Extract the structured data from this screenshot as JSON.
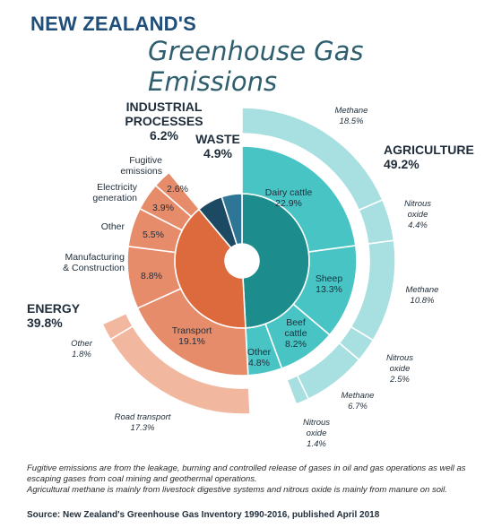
{
  "header": {
    "title_line1": "NEW ZEALAND'S",
    "title_line2": "Greenhouse Gas Emissions"
  },
  "chart_data": {
    "type": "sunburst",
    "title": "NEW ZEALAND'S Greenhouse Gas Emissions",
    "unit": "%",
    "sectors": [
      {
        "name": "AGRICULTURE",
        "value": 49.2,
        "color": "#3fbcbc",
        "sources": [
          {
            "name": "Dairy cattle",
            "value": 22.9
          },
          {
            "name": "Sheep",
            "value": 13.3
          },
          {
            "name": "Beef cattle",
            "value": 8.2
          },
          {
            "name": "Other",
            "value": 4.8
          }
        ],
        "gases": [
          {
            "name": "Methane",
            "value": 18.5
          },
          {
            "name": "Nitrous oxide",
            "value": 4.4
          },
          {
            "name": "Methane",
            "value": 10.8
          },
          {
            "name": "Nitrous oxide",
            "value": 2.5
          },
          {
            "name": "Methane",
            "value": 6.7
          },
          {
            "name": "Nitrous oxide",
            "value": 1.4
          }
        ]
      },
      {
        "name": "ENERGY",
        "value": 39.8,
        "color": "#e07a55",
        "sources": [
          {
            "name": "Transport",
            "value": 19.1
          },
          {
            "name": "Manufacturing & Construction",
            "value": 8.8
          },
          {
            "name": "Other",
            "value": 5.5
          },
          {
            "name": "Electricity generation",
            "value": 3.9
          },
          {
            "name": "Fugitive emissions",
            "value": 2.6
          }
        ],
        "transport_breakdown": [
          {
            "name": "Road transport",
            "value": 17.3
          },
          {
            "name": "Other",
            "value": 1.8
          }
        ]
      },
      {
        "name": "INDUSTRIAL PROCESSES",
        "value": 6.2,
        "color": "#1d5a73"
      },
      {
        "name": "WASTE",
        "value": 4.9,
        "color": "#2f7e96"
      }
    ],
    "labels": {
      "agriculture": [
        "AGRICULTURE",
        "49.2%"
      ],
      "energy": [
        "ENERGY",
        "39.8%"
      ],
      "industrial": [
        "INDUSTRIAL",
        "PROCESSES",
        "6.2%"
      ],
      "waste": [
        "WASTE",
        "4.9%"
      ],
      "dairy": [
        "Dairy cattle",
        "22.9%"
      ],
      "sheep": [
        "Sheep",
        "13.3%"
      ],
      "beef": [
        "Beef",
        "cattle",
        "8.2%"
      ],
      "ag_other": [
        "Other",
        "4.8%"
      ],
      "transport": [
        "Transport",
        "19.1%"
      ],
      "manufacturing_name": [
        "Manufacturing",
        "& Construction"
      ],
      "manufacturing_value": "8.8%",
      "en_other_name": "Other",
      "en_other_value": "5.5%",
      "electricity_name": [
        "Electricity",
        "generation"
      ],
      "electricity_value": "3.9%",
      "fugitive_name": [
        "Fugitive",
        "emissions"
      ],
      "fugitive_value": "2.6%",
      "methane1": [
        "Methane",
        "18.5%"
      ],
      "nitrous1": [
        "Nitrous",
        "oxide",
        "4.4%"
      ],
      "methane2": [
        "Methane",
        "10.8%"
      ],
      "nitrous2": [
        "Nitrous",
        "oxide",
        "2.5%"
      ],
      "methane3": [
        "Methane",
        "6.7%"
      ],
      "nitrous3": [
        "Nitrous",
        "oxide",
        "1.4%"
      ],
      "road": [
        "Road transport",
        "17.3%"
      ],
      "tr_other": [
        "Other",
        "1.8%"
      ]
    }
  },
  "footer": {
    "note1": "Fugitive emissions are from the leakage, burning and controlled release of gases in oil and gas operations as well as escaping gases from coal mining and geothermal operations.",
    "note2": "Agricultural methane is mainly from livestock digestive systems and nitrous oxide is mainly from manure on soil.",
    "source": "Source: New Zealand's Greenhouse Gas Inventory 1990-2016, published April 2018"
  },
  "colors": {
    "agri_inner": "#1c8c8c",
    "agri_mid": "#48c4c4",
    "agri_outer": "#a8dfe0",
    "energy_inner": "#dc6a3c",
    "energy_mid": "#e78c6a",
    "energy_outer": "#f1b79f",
    "industrial": "#1d4a63",
    "waste": "#2f7596"
  }
}
